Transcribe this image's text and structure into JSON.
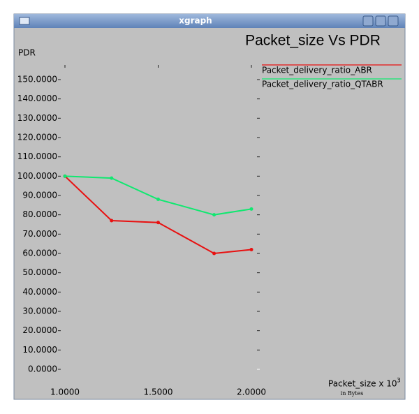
{
  "window": {
    "title": "xgraph"
  },
  "chart_data": {
    "type": "line",
    "title": "Packet_size Vs PDR",
    "y_label": "PDR",
    "x_label": "Packet_size x 10",
    "x_label_superscript": "3",
    "x_label_unit": "in Bytes",
    "x": [
      1.0,
      1.25,
      1.5,
      1.8,
      2.0
    ],
    "series": [
      {
        "name": "Packet_delivery_ratio_ABR",
        "color": "#e81010",
        "values": [
          100,
          77,
          76,
          60,
          62
        ]
      },
      {
        "name": "Packet_delivery_ratio_QTABR",
        "color": "#10e870",
        "values": [
          100,
          99,
          88,
          80,
          83
        ]
      }
    ],
    "xlim": [
      1.0,
      2.0
    ],
    "ylim": [
      0,
      150
    ],
    "xticks": [
      {
        "value": 1.0,
        "label": "1.0000"
      },
      {
        "value": 1.5,
        "label": "1.5000"
      },
      {
        "value": 2.0,
        "label": "2.0000"
      }
    ],
    "yticks": [
      {
        "value": 0,
        "label": "0.0000"
      },
      {
        "value": 10,
        "label": "10.0000"
      },
      {
        "value": 20,
        "label": "20.0000"
      },
      {
        "value": 30,
        "label": "30.0000"
      },
      {
        "value": 40,
        "label": "40.0000"
      },
      {
        "value": 50,
        "label": "50.0000"
      },
      {
        "value": 60,
        "label": "60.0000"
      },
      {
        "value": 70,
        "label": "70.0000"
      },
      {
        "value": 80,
        "label": "80.0000"
      },
      {
        "value": 90,
        "label": "90.0000"
      },
      {
        "value": 100,
        "label": "100.0000"
      },
      {
        "value": 110,
        "label": "110.0000"
      },
      {
        "value": 120,
        "label": "120.0000"
      },
      {
        "value": 130,
        "label": "130.0000"
      },
      {
        "value": 140,
        "label": "140.0000"
      },
      {
        "value": 150,
        "label": "150.0000"
      }
    ],
    "legend": "top-right"
  }
}
